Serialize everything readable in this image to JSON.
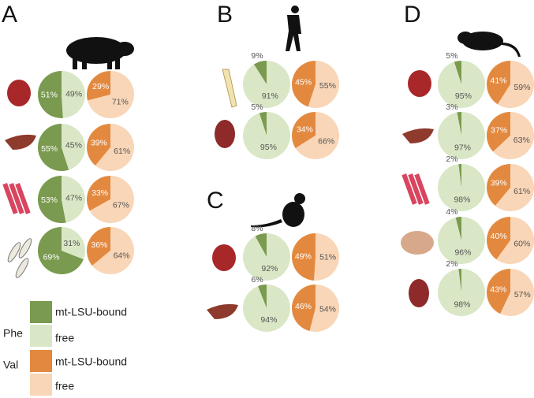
{
  "panels": [
    "A",
    "B",
    "C",
    "D"
  ],
  "legend": {
    "groups": [
      {
        "name": "Phe",
        "items": [
          {
            "label": "mt-LSU-bound",
            "color": "#7a9a4f"
          },
          {
            "label": "free",
            "color": "#d9e7c6"
          }
        ]
      },
      {
        "name": "Val",
        "items": [
          {
            "label": "mt-LSU-bound",
            "color": "#e3893f"
          },
          {
            "label": "free",
            "color": "#f9d6b7"
          }
        ]
      }
    ]
  },
  "chart_data": [
    {
      "type": "pie",
      "values": [
        51,
        49
      ],
      "value_labels": [
        "51%",
        "49%"
      ],
      "colors": [
        "#7a9a4f",
        "#d9e7c6"
      ]
    },
    {
      "type": "pie",
      "values": [
        29,
        71
      ],
      "value_labels": [
        "29%",
        "71%"
      ],
      "colors": [
        "#e3893f",
        "#f9d6b7"
      ]
    },
    {
      "type": "pie",
      "values": [
        55,
        45
      ],
      "value_labels": [
        "55%",
        "45%"
      ],
      "colors": [
        "#7a9a4f",
        "#d9e7c6"
      ]
    },
    {
      "type": "pie",
      "values": [
        39,
        61
      ],
      "value_labels": [
        "39%",
        "61%"
      ],
      "colors": [
        "#e3893f",
        "#f9d6b7"
      ]
    },
    {
      "type": "pie",
      "values": [
        53,
        47
      ],
      "value_labels": [
        "53%",
        "47%"
      ],
      "colors": [
        "#7a9a4f",
        "#d9e7c6"
      ]
    },
    {
      "type": "pie",
      "values": [
        33,
        67
      ],
      "value_labels": [
        "33%",
        "67%"
      ],
      "colors": [
        "#e3893f",
        "#f9d6b7"
      ]
    },
    {
      "type": "pie",
      "values": [
        69,
        31
      ],
      "value_labels": [
        "69%",
        "31%"
      ],
      "colors": [
        "#7a9a4f",
        "#d9e7c6"
      ]
    },
    {
      "type": "pie",
      "values": [
        36,
        64
      ],
      "value_labels": [
        "36%",
        "64%"
      ],
      "colors": [
        "#e3893f",
        "#f9d6b7"
      ]
    },
    {
      "type": "pie",
      "values": [
        9,
        91
      ],
      "value_labels": [
        "9%",
        "91%"
      ],
      "colors": [
        "#7a9a4f",
        "#d9e7c6"
      ]
    },
    {
      "type": "pie",
      "values": [
        45,
        55
      ],
      "value_labels": [
        "45%",
        "55%"
      ],
      "colors": [
        "#e3893f",
        "#f9d6b7"
      ]
    },
    {
      "type": "pie",
      "values": [
        5,
        95
      ],
      "value_labels": [
        "5%",
        "95%"
      ],
      "colors": [
        "#7a9a4f",
        "#d9e7c6"
      ]
    },
    {
      "type": "pie",
      "values": [
        34,
        66
      ],
      "value_labels": [
        "34%",
        "66%"
      ],
      "colors": [
        "#e3893f",
        "#f9d6b7"
      ]
    },
    {
      "type": "pie",
      "values": [
        8,
        92
      ],
      "value_labels": [
        "8%",
        "92%"
      ],
      "colors": [
        "#7a9a4f",
        "#d9e7c6"
      ]
    },
    {
      "type": "pie",
      "values": [
        49,
        51
      ],
      "value_labels": [
        "49%",
        "51%"
      ],
      "colors": [
        "#e3893f",
        "#f9d6b7"
      ]
    },
    {
      "type": "pie",
      "values": [
        6,
        94
      ],
      "value_labels": [
        "6%",
        "94%"
      ],
      "colors": [
        "#7a9a4f",
        "#d9e7c6"
      ]
    },
    {
      "type": "pie",
      "values": [
        46,
        54
      ],
      "value_labels": [
        "46%",
        "54%"
      ],
      "colors": [
        "#e3893f",
        "#f9d6b7"
      ]
    },
    {
      "type": "pie",
      "values": [
        5,
        95
      ],
      "value_labels": [
        "5%",
        "95%"
      ],
      "colors": [
        "#7a9a4f",
        "#d9e7c6"
      ]
    },
    {
      "type": "pie",
      "values": [
        41,
        59
      ],
      "value_labels": [
        "41%",
        "59%"
      ],
      "colors": [
        "#e3893f",
        "#f9d6b7"
      ]
    },
    {
      "type": "pie",
      "values": [
        3,
        97
      ],
      "value_labels": [
        "3%",
        "97%"
      ],
      "colors": [
        "#7a9a4f",
        "#d9e7c6"
      ]
    },
    {
      "type": "pie",
      "values": [
        37,
        63
      ],
      "value_labels": [
        "37%",
        "63%"
      ],
      "colors": [
        "#e3893f",
        "#f9d6b7"
      ]
    },
    {
      "type": "pie",
      "values": [
        2,
        98
      ],
      "value_labels": [
        "2%",
        "98%"
      ],
      "colors": [
        "#7a9a4f",
        "#d9e7c6"
      ]
    },
    {
      "type": "pie",
      "values": [
        39,
        61
      ],
      "value_labels": [
        "39%",
        "61%"
      ],
      "colors": [
        "#e3893f",
        "#f9d6b7"
      ]
    },
    {
      "type": "pie",
      "values": [
        4,
        96
      ],
      "value_labels": [
        "4%",
        "96%"
      ],
      "colors": [
        "#7a9a4f",
        "#d9e7c6"
      ]
    },
    {
      "type": "pie",
      "values": [
        40,
        60
      ],
      "value_labels": [
        "40%",
        "60%"
      ],
      "colors": [
        "#e3893f",
        "#f9d6b7"
      ]
    },
    {
      "type": "pie",
      "values": [
        2,
        98
      ],
      "value_labels": [
        "2%",
        "98%"
      ],
      "colors": [
        "#7a9a4f",
        "#d9e7c6"
      ]
    },
    {
      "type": "pie",
      "values": [
        43,
        57
      ],
      "value_labels": [
        "43%",
        "57%"
      ],
      "colors": [
        "#e3893f",
        "#f9d6b7"
      ]
    }
  ]
}
